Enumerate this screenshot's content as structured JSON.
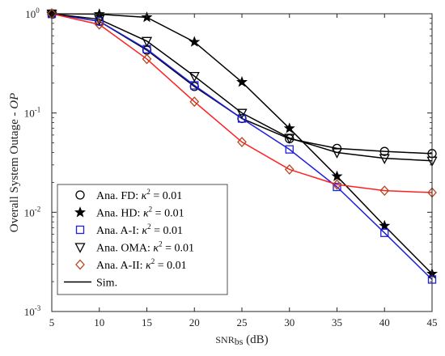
{
  "chart_data": {
    "type": "line",
    "xlabel": "SNR_bs (dB)",
    "ylabel": "Overall System Outage - OP",
    "xlim": [
      5,
      45
    ],
    "ylim": [
      0.001,
      1
    ],
    "yscale": "log",
    "grid": false,
    "legend_position": "bottom-left",
    "x_ticks": [
      "5",
      "10",
      "15",
      "20",
      "25",
      "30",
      "35",
      "40",
      "45"
    ],
    "y_ticks": [
      {
        "value": 0.001,
        "base": "10",
        "exp": "-3"
      },
      {
        "value": 0.01,
        "base": "10",
        "exp": "-2"
      },
      {
        "value": 0.1,
        "base": "10",
        "exp": "-1"
      },
      {
        "value": 1,
        "base": "10",
        "exp": "0"
      }
    ],
    "x": [
      5,
      10,
      15,
      20,
      25,
      30,
      35,
      40,
      45
    ],
    "series": [
      {
        "name": "Ana. FD: κ² = 0.01",
        "marker": "circle",
        "color": "#000000",
        "values": [
          1.0,
          0.84,
          0.43,
          0.185,
          0.088,
          0.055,
          0.044,
          0.041,
          0.039
        ]
      },
      {
        "name": "Ana. HD: κ² = 0.01",
        "marker": "star",
        "color": "#000000",
        "values": [
          1.0,
          0.99,
          0.92,
          0.52,
          0.205,
          0.07,
          0.023,
          0.0073,
          0.0024
        ]
      },
      {
        "name": "Ana. A-I: κ² = 0.01",
        "marker": "square",
        "color": "#1f1fdc",
        "values": [
          1.0,
          0.84,
          0.44,
          0.19,
          0.088,
          0.043,
          0.018,
          0.0062,
          0.0021
        ]
      },
      {
        "name": "Ana. OMA: κ² = 0.01",
        "marker": "triangle-down",
        "color": "#000000",
        "values": [
          1.0,
          0.88,
          0.53,
          0.235,
          0.1,
          0.056,
          0.04,
          0.035,
          0.033
        ]
      },
      {
        "name": "Ana. A-II: κ² = 0.01",
        "marker": "diamond",
        "color": "#b5451b",
        "values": [
          1.0,
          0.78,
          0.35,
          0.13,
          0.051,
          0.027,
          0.019,
          0.0165,
          0.0158
        ]
      }
    ],
    "simulation_legend": "Sim.",
    "sim_lines": [
      {
        "series_index": 0,
        "color": "#000000"
      },
      {
        "series_index": 1,
        "color": "#000000"
      },
      {
        "series_index": 2,
        "color": "#1f1fdc"
      },
      {
        "series_index": 3,
        "color": "#000000"
      },
      {
        "series_index": 4,
        "color": "#ff2020"
      }
    ],
    "legend_entries": [
      {
        "prefix": "Ana. FD:",
        "kappa": "κ",
        "sup": "2",
        "value": "= 0.01",
        "marker": "circle",
        "color": "#000000"
      },
      {
        "prefix": "Ana. HD:",
        "kappa": "κ",
        "sup": "2",
        "value": "= 0.01",
        "marker": "star",
        "color": "#000000"
      },
      {
        "prefix": "Ana. A-I:",
        "kappa": "κ",
        "sup": "2",
        "value": "= 0.01",
        "marker": "square",
        "color": "#1f1fdc"
      },
      {
        "prefix": "Ana. OMA:",
        "kappa": "κ",
        "sup": "2",
        "value": "= 0.01",
        "marker": "triangle-down",
        "color": "#000000"
      },
      {
        "prefix": "Ana. A-II:",
        "kappa": "κ",
        "sup": "2",
        "value": "= 0.01",
        "marker": "diamond",
        "color": "#b5451b"
      }
    ]
  }
}
